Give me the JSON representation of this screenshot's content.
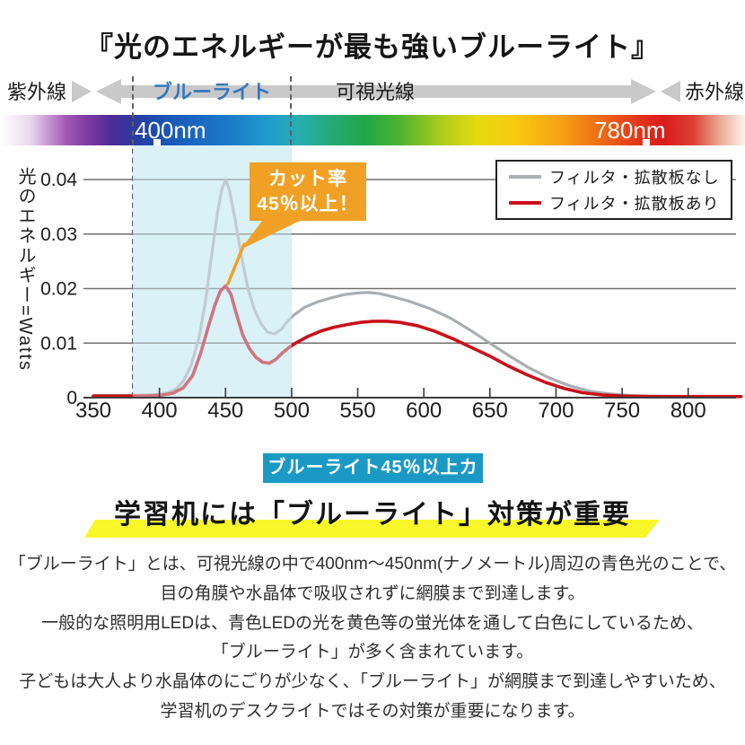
{
  "title": "『光のエネルギーが最も強いブルーライト』",
  "spectrum_axis": {
    "left_label": "紫外線",
    "right_label": "赤外線",
    "blue_light_label": "ブルーライト",
    "visible_light_label": "可視光線"
  },
  "wavelength_bar": {
    "start_label": "400nm",
    "end_label": "780nm"
  },
  "chart_data": {
    "type": "line",
    "title": "",
    "xlabel": "",
    "ylabel": "光のエネルギー=Watts",
    "xlim": [
      350,
      840
    ],
    "ylim": [
      0,
      0.045
    ],
    "x_ticks": [
      350,
      400,
      450,
      500,
      550,
      600,
      650,
      700,
      750,
      800
    ],
    "y_ticks": [
      0,
      0.01,
      0.02,
      0.03,
      0.04
    ],
    "y_tick_labels": [
      "0",
      "0.01",
      "0.02",
      "0.03",
      "0.04"
    ],
    "grid": true,
    "legend_position": "upper right",
    "highlight_band_nm": [
      380,
      500
    ],
    "series": [
      {
        "name": "フィルタ・拡散板なし",
        "color": "#a9aeb2",
        "x": [
          350,
          380,
          395,
          405,
          412,
          418,
          424,
          430,
          435,
          440,
          444,
          447,
          450,
          453,
          457,
          462,
          467,
          472,
          477,
          482,
          487,
          492,
          497,
          502,
          510,
          520,
          530,
          540,
          550,
          558,
          566,
          575,
          590,
          605,
          620,
          635,
          650,
          665,
          680,
          695,
          710,
          725,
          740,
          755,
          770,
          800,
          840
        ],
        "y": [
          0.0004,
          0.0004,
          0.0005,
          0.0008,
          0.0015,
          0.003,
          0.006,
          0.011,
          0.018,
          0.027,
          0.034,
          0.038,
          0.04,
          0.038,
          0.033,
          0.026,
          0.02,
          0.016,
          0.0135,
          0.012,
          0.0117,
          0.0125,
          0.014,
          0.0152,
          0.0166,
          0.0176,
          0.0183,
          0.0189,
          0.0192,
          0.0193,
          0.0191,
          0.0186,
          0.0176,
          0.0163,
          0.0146,
          0.0124,
          0.01,
          0.0076,
          0.0054,
          0.0036,
          0.0022,
          0.0012,
          0.0007,
          0.0004,
          0.0003,
          0.0002,
          0.0002
        ]
      },
      {
        "name": "フィルタ・拡散板あり",
        "color": "#c9101a",
        "x": [
          350,
          380,
          400,
          410,
          418,
          425,
          431,
          437,
          442,
          446,
          450,
          454,
          458,
          463,
          468,
          473,
          478,
          483,
          488,
          493,
          498,
          503,
          512,
          522,
          532,
          542,
          552,
          562,
          572,
          582,
          595,
          608,
          622,
          636,
          650,
          664,
          678,
          692,
          706,
          720,
          735,
          750,
          770,
          800,
          840
        ],
        "y": [
          0.0003,
          0.0003,
          0.0004,
          0.0008,
          0.0018,
          0.004,
          0.008,
          0.013,
          0.017,
          0.0195,
          0.0205,
          0.019,
          0.0155,
          0.0115,
          0.009,
          0.0074,
          0.0065,
          0.0063,
          0.007,
          0.0082,
          0.0092,
          0.01,
          0.0112,
          0.0122,
          0.0129,
          0.0134,
          0.0138,
          0.014,
          0.014,
          0.0138,
          0.0132,
          0.0122,
          0.0108,
          0.0092,
          0.0076,
          0.0058,
          0.0042,
          0.0028,
          0.0017,
          0.0009,
          0.0005,
          0.0003,
          0.0002,
          0.0002,
          0.0002
        ]
      }
    ],
    "annotation": "カット率 45％以上！"
  },
  "callout": {
    "line1": "カット率",
    "line2": "45％以上！"
  },
  "badge_label": "ブルーライト45％以上カット",
  "heading": "学習机には「ブルーライト」対策が重要",
  "paragraphs": [
    "「ブルーライト」とは、可視光線の中で400nm～450nm(ナノメートル)周辺の青色光のことで、",
    "目の角膜や水晶体で吸収されずに網膜まで到達します。",
    "一般的な照明用LEDは、青色LEDの光を黄色等の蛍光体を通して白色にしているため、",
    "「ブルーライト」が多く含まれています。",
    "子どもは大人より水晶体のにごりが少なく、「ブルーライト」が網膜まで到達しやすいため、",
    "学習机のデスクライトではその対策が重要になります。"
  ],
  "colors": {
    "accent_orange": "#f0a125",
    "badge_blue": "#1a99c5",
    "highlight_yellow": "#f7f72a",
    "bluelight_text": "#3577be",
    "series_no_filter": "#a9aeb2",
    "series_with_filter": "#c9101a",
    "band_fill": "#daf1f8"
  }
}
